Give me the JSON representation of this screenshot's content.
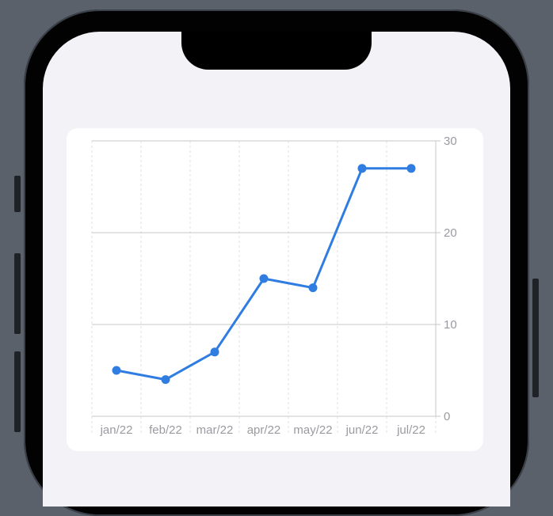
{
  "chart_data": {
    "type": "line",
    "categories": [
      "jan/22",
      "feb/22",
      "mar/22",
      "apr/22",
      "may/22",
      "jun/22",
      "jul/22"
    ],
    "values": [
      5,
      4,
      7,
      15,
      14,
      27,
      27
    ],
    "yticks": [
      0,
      10,
      20,
      30
    ],
    "ylim": [
      0,
      30
    ],
    "y_axis_side": "right",
    "grid": true,
    "colors": {
      "line": "#2f7de1",
      "grid": "#c7c7cc",
      "minor_grid": "#e2e2e7",
      "tick_text": "#9a9aa0"
    }
  }
}
